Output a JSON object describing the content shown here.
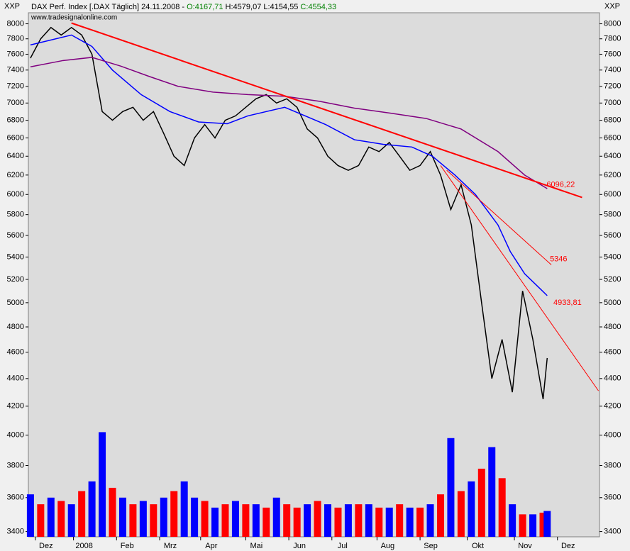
{
  "chart_data": {
    "type": "line",
    "title": "DAX Perf. Index [.DAX  Täglich] 24.11.2008 -",
    "open": "O:4167,71",
    "high": "H:4579,07",
    "low": "L:4154,55",
    "close": "C:4554,33",
    "source": "www.tradesignalonline.com",
    "unit_left": "XXP",
    "unit_right": "XXP",
    "log": true,
    "xlim": [
      -1,
      277.5
    ],
    "ylim": [
      3370,
      8150
    ],
    "yticks": [
      3400,
      3600,
      3800,
      4000,
      4200,
      4400,
      4600,
      4800,
      5000,
      5200,
      5400,
      5600,
      5800,
      6000,
      6200,
      6400,
      6600,
      6800,
      7000,
      7200,
      7400,
      7600,
      7800,
      8000
    ],
    "xticks": [
      {
        "value": 2.4,
        "label": "Dez"
      },
      {
        "value": 21,
        "label": "2008"
      },
      {
        "value": 42,
        "label": "Feb"
      },
      {
        "value": 63,
        "label": "Mrz"
      },
      {
        "value": 83,
        "label": "Apr"
      },
      {
        "value": 105,
        "label": "Mai"
      },
      {
        "value": 126,
        "label": "Jun"
      },
      {
        "value": 147,
        "label": "Jul"
      },
      {
        "value": 169,
        "label": "Aug"
      },
      {
        "value": 190,
        "label": "Sep"
      },
      {
        "value": 213,
        "label": "Okt"
      },
      {
        "value": 236,
        "label": "Nov"
      },
      {
        "value": 257,
        "label": "Dez"
      }
    ],
    "series": [
      {
        "color": "#000000",
        "x": [
          0,
          5,
          10,
          15,
          20,
          25,
          30,
          35,
          40,
          45,
          50,
          55,
          60,
          65,
          70,
          75,
          80,
          85,
          90,
          95,
          100,
          105,
          110,
          115,
          120,
          125,
          130,
          135,
          140,
          145,
          150,
          155,
          160,
          165,
          170,
          175,
          180,
          185,
          190,
          195,
          200,
          205,
          210,
          215,
          220,
          225,
          230,
          235,
          240,
          245,
          250,
          252
        ],
        "values": [
          7550,
          7800,
          7950,
          7850,
          7950,
          7850,
          7600,
          6900,
          6800,
          6900,
          6950,
          6800,
          6900,
          6650,
          6400,
          6300,
          6600,
          6750,
          6600,
          6800,
          6850,
          6950,
          7050,
          7100,
          7000,
          7050,
          6950,
          6700,
          6600,
          6400,
          6300,
          6250,
          6300,
          6500,
          6450,
          6550,
          6400,
          6250,
          6300,
          6450,
          6200,
          5850,
          6100,
          5700,
          5000,
          4400,
          4700,
          4300,
          5100,
          4700,
          4250,
          4554.33
        ]
      },
      {
        "color": "#0000ff",
        "x": [
          0,
          20,
          30,
          40,
          54,
          68,
          82,
          96,
          106,
          124,
          134,
          144,
          158,
          172,
          186,
          196,
          207,
          217,
          228,
          234,
          241,
          252
        ],
        "values": [
          7720,
          7850,
          7700,
          7400,
          7100,
          6900,
          6780,
          6760,
          6850,
          6950,
          6850,
          6750,
          6580,
          6530,
          6500,
          6400,
          6200,
          6000,
          5700,
          5450,
          5250,
          5060
        ]
      },
      {
        "color": "#800080",
        "x": [
          0,
          16,
          30,
          44,
          58,
          72,
          89,
          106,
          124,
          141,
          158,
          176,
          193,
          210,
          228,
          241,
          252
        ],
        "values": [
          7440,
          7520,
          7560,
          7450,
          7320,
          7200,
          7130,
          7100,
          7080,
          7020,
          6940,
          6880,
          6820,
          6700,
          6450,
          6200,
          6060
        ]
      },
      {
        "color": "#ff0000",
        "width": 2,
        "x": [
          20,
          269
        ],
        "values": [
          8010,
          5970
        ],
        "label": "6096,22"
      },
      {
        "color": "#ff0000",
        "width": 1,
        "x": [
          203,
          254
        ],
        "values": [
          6250,
          5330
        ],
        "label": "5346"
      },
      {
        "color": "#ff0000",
        "width": 1,
        "x": [
          200,
          277
        ],
        "values": [
          6300,
          4310
        ],
        "label": "4933,81"
      }
    ],
    "volume": {
      "x": [
        0,
        5,
        10,
        15,
        20,
        25,
        30,
        35,
        40,
        45,
        50,
        55,
        60,
        65,
        70,
        75,
        80,
        85,
        90,
        95,
        100,
        105,
        110,
        115,
        120,
        125,
        130,
        135,
        140,
        145,
        150,
        155,
        160,
        165,
        170,
        175,
        180,
        185,
        190,
        195,
        200,
        205,
        210,
        215,
        220,
        225,
        230,
        235,
        240,
        245,
        250,
        252
      ],
      "values": [
        3620,
        3560,
        3600,
        3580,
        3560,
        3640,
        3700,
        4020,
        3660,
        3600,
        3560,
        3580,
        3560,
        3600,
        3640,
        3700,
        3600,
        3580,
        3540,
        3560,
        3580,
        3560,
        3560,
        3540,
        3600,
        3560,
        3540,
        3560,
        3580,
        3560,
        3540,
        3560,
        3560,
        3560,
        3540,
        3540,
        3560,
        3540,
        3540,
        3560,
        3620,
        3980,
        3640,
        3700,
        3780,
        3920,
        3720,
        3560,
        3500,
        3500,
        3510,
        3520
      ],
      "colors": [
        "#0000ff",
        "#ff0000",
        "#0000ff",
        "#ff0000",
        "#0000ff",
        "#ff0000",
        "#0000ff",
        "#0000ff",
        "#ff0000",
        "#0000ff",
        "#ff0000",
        "#0000ff",
        "#ff0000",
        "#0000ff",
        "#ff0000",
        "#0000ff",
        "#0000ff",
        "#ff0000",
        "#0000ff",
        "#ff0000",
        "#0000ff",
        "#ff0000",
        "#0000ff",
        "#ff0000",
        "#0000ff",
        "#ff0000",
        "#ff0000",
        "#0000ff",
        "#ff0000",
        "#0000ff",
        "#ff0000",
        "#0000ff",
        "#ff0000",
        "#0000ff",
        "#ff0000",
        "#0000ff",
        "#ff0000",
        "#0000ff",
        "#ff0000",
        "#0000ff",
        "#ff0000",
        "#0000ff",
        "#ff0000",
        "#0000ff",
        "#ff0000",
        "#0000ff",
        "#ff0000",
        "#0000ff",
        "#ff0000",
        "#0000ff",
        "#ff0000",
        "#0000ff"
      ]
    }
  }
}
